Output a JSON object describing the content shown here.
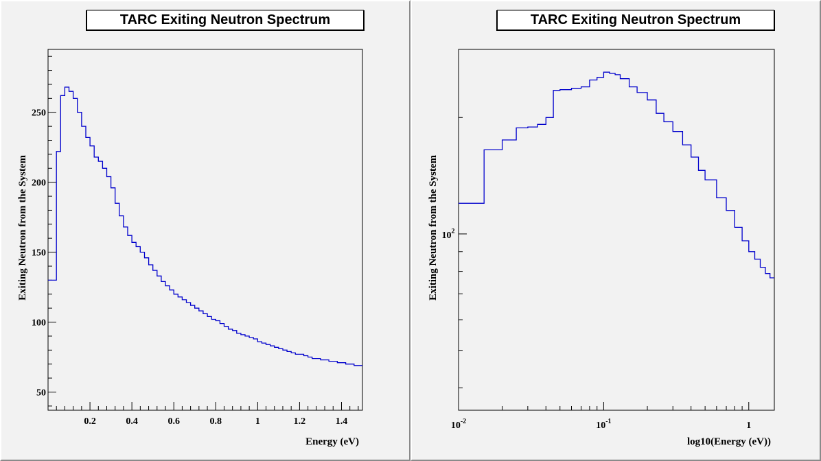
{
  "chart_data": [
    {
      "type": "step",
      "title": "TARC Exiting Neutron Spectrum",
      "xlabel": "Energy (eV)",
      "ylabel": "Exiting Neutron from the System",
      "xlim": [
        0.0,
        1.5
      ],
      "ylim": [
        37,
        295
      ],
      "xscale": "linear",
      "yscale": "linear",
      "x_ticks": [
        0.2,
        0.4,
        0.6,
        0.8,
        1,
        1.2,
        1.4
      ],
      "x_tick_labels": [
        "0.2",
        "0.4",
        "0.6",
        "0.8",
        "1",
        "1.2",
        "1.4"
      ],
      "y_ticks": [
        50,
        100,
        150,
        200,
        250
      ],
      "y_tick_labels": [
        "50",
        "100",
        "150",
        "200",
        "250"
      ],
      "line_color": "#0000cc",
      "grid": false,
      "legend": "none",
      "series": [
        {
          "x": [
            0.0,
            0.04,
            0.06,
            0.08,
            0.1,
            0.12,
            0.14,
            0.16,
            0.18,
            0.2,
            0.22,
            0.24,
            0.26,
            0.28,
            0.3,
            0.32,
            0.34,
            0.36,
            0.38,
            0.4,
            0.42,
            0.44,
            0.46,
            0.48,
            0.5,
            0.52,
            0.54,
            0.56,
            0.58,
            0.6,
            0.62,
            0.64,
            0.66,
            0.68,
            0.7,
            0.72,
            0.74,
            0.76,
            0.78,
            0.8,
            0.82,
            0.84,
            0.86,
            0.88,
            0.9,
            0.92,
            0.94,
            0.96,
            0.98,
            1.0,
            1.02,
            1.04,
            1.06,
            1.08,
            1.1,
            1.12,
            1.14,
            1.16,
            1.18,
            1.2,
            1.22,
            1.24,
            1.26,
            1.28,
            1.3,
            1.32,
            1.34,
            1.36,
            1.38,
            1.4,
            1.42,
            1.44,
            1.46,
            1.48,
            1.5
          ],
          "y": [
            130,
            222,
            262,
            268,
            265,
            260,
            250,
            240,
            232,
            226,
            218,
            215,
            210,
            204,
            196,
            185,
            176,
            168,
            162,
            157,
            154,
            150,
            146,
            141,
            137,
            133,
            129,
            126,
            123,
            120,
            118,
            116,
            114,
            112,
            110,
            108,
            106,
            104,
            102,
            101,
            99,
            97,
            95,
            94,
            92,
            91,
            90,
            89,
            88,
            86,
            85,
            84,
            83,
            82,
            81,
            80,
            79,
            78,
            77,
            77,
            76,
            75,
            74,
            74,
            73,
            73,
            72,
            72,
            71,
            71,
            70,
            70,
            69,
            69,
            68
          ]
        }
      ]
    },
    {
      "type": "step",
      "title": "TARC Exiting Neutron Spectrum",
      "xlabel": "log10(Energy (eV))",
      "ylabel": "Exiting Neutron from the System",
      "xlim": [
        0.01,
        1.5
      ],
      "ylim": [
        35,
        300
      ],
      "xscale": "log",
      "yscale": "log",
      "x_ticks": [
        0.01,
        0.1,
        1
      ],
      "x_tick_bases": [
        "10",
        "10",
        "1"
      ],
      "x_tick_exps": [
        "-2",
        "-1",
        ""
      ],
      "y_ticks": [
        100
      ],
      "y_tick_bases": [
        "10"
      ],
      "y_tick_exps": [
        "2"
      ],
      "line_color": "#0000cc",
      "grid": false,
      "legend": "none",
      "series": [
        {
          "x": [
            0.01,
            0.015,
            0.02,
            0.025,
            0.03,
            0.035,
            0.04,
            0.045,
            0.05,
            0.06,
            0.07,
            0.08,
            0.09,
            0.1,
            0.11,
            0.12,
            0.13,
            0.15,
            0.17,
            0.2,
            0.23,
            0.26,
            0.3,
            0.35,
            0.4,
            0.45,
            0.5,
            0.6,
            0.7,
            0.8,
            0.9,
            1.0,
            1.1,
            1.2,
            1.3,
            1.4,
            1.5
          ],
          "y": [
            120,
            165,
            175,
            188,
            189,
            192,
            200,
            235,
            236,
            238,
            240,
            250,
            254,
            262,
            260,
            258,
            252,
            240,
            232,
            222,
            205,
            195,
            184,
            170,
            158,
            146,
            138,
            124,
            115,
            104,
            96,
            90,
            86,
            82,
            79,
            77,
            72
          ]
        }
      ]
    }
  ]
}
